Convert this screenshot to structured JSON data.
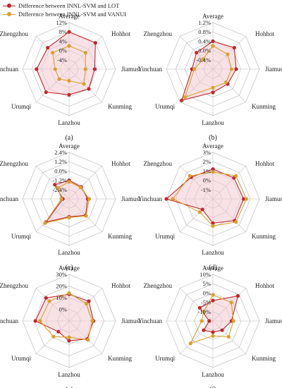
{
  "legend": {
    "series1": "Difference between INNL-SVM and LOT",
    "series2": "Difference between INNL-SVM and VANUI"
  },
  "colors": {
    "series1": "#c0272d",
    "series2": "#d8a12c",
    "fill": "#f4c6cd",
    "grid": "#bfbfbf"
  },
  "chart_data": [
    {
      "type": "radar",
      "panel_label": "(a)",
      "axes": [
        "Average",
        "Hohhot",
        "Jiamusi",
        "Kunming",
        "Lanzhou",
        "Urumqi",
        "Yinchuan",
        "Zhengzhou"
      ],
      "ticks": [
        "-4%",
        "0%",
        "4%",
        "8%",
        "12%"
      ],
      "range": [
        -8,
        12
      ],
      "series": [
        {
          "name": "Difference between INNL-SVM and LOT",
          "values": [
            8,
            8,
            3,
            4,
            3,
            6,
            6,
            5
          ]
        },
        {
          "name": "Difference between INNL-SVM and VANUI",
          "values": [
            2,
            2,
            -1,
            1,
            -3,
            -2,
            -2,
            2
          ]
        }
      ]
    },
    {
      "type": "radar",
      "panel_label": "(b)",
      "axes": [
        "Average",
        "Hohhot",
        "Jiamusi",
        "Kunming",
        "Lanzhou",
        "Urumqi",
        "Yinchuan",
        "Zhengzhou"
      ],
      "ticks": [
        "-0.4%",
        "0.0%",
        "0.4%",
        "0.8%",
        "1.2%"
      ],
      "range": [
        -0.8,
        1.2
      ],
      "series": [
        {
          "name": "Difference between INNL-SVM and LOT",
          "values": [
            0.4,
            0.5,
            0.2,
            0.1,
            0.2,
            1.1,
            0.1,
            0.2
          ]
        },
        {
          "name": "Difference between INNL-SVM and VANUI",
          "values": [
            0.2,
            0.1,
            0.0,
            0.0,
            0.0,
            0.9,
            0.0,
            -0.2
          ]
        }
      ]
    },
    {
      "type": "radar",
      "panel_label": "(c)",
      "axes": [
        "Average",
        "Hohhot",
        "Jiamusi",
        "Kunming",
        "Lanzhou",
        "Urumqi",
        "Yinchuan",
        "Zhengzhou"
      ],
      "ticks": [
        "-2.4%",
        "-1.2%",
        "0.0%",
        "1.2%",
        "2.4%"
      ],
      "range": [
        -3.6,
        2.4
      ],
      "series": [
        {
          "name": "Difference between INNL-SVM and LOT",
          "values": [
            -1.2,
            -1.4,
            -1.2,
            -0.6,
            -1.3,
            0.6,
            -2.8,
            -1.0
          ]
        },
        {
          "name": "Difference between INNL-SVM and VANUI",
          "values": [
            -1.4,
            -1.5,
            -1.0,
            -0.5,
            -1.2,
            0.8,
            -2.6,
            -1.6
          ]
        }
      ]
    },
    {
      "type": "radar",
      "panel_label": "(d)",
      "axes": [
        "Average",
        "Hohhot",
        "Jiamusi",
        "Kunming",
        "Lanzhou",
        "Urumqi",
        "Yinchuan",
        "Zhengzhou"
      ],
      "ticks": [
        "-1%",
        "0%",
        "1%",
        "2%",
        "3%"
      ],
      "range": [
        -2,
        3
      ],
      "series": [
        {
          "name": "Difference between INNL-SVM and LOT",
          "values": [
            1.2,
            1.2,
            1.3,
            1.3,
            0.6,
            -0.4,
            3.0,
            1.3
          ]
        },
        {
          "name": "Difference between INNL-SVM and VANUI",
          "values": [
            0.9,
            1.5,
            1.6,
            1.5,
            0.9,
            0.0,
            2.3,
            1.5
          ]
        }
      ]
    },
    {
      "type": "radar",
      "panel_label": "(e)",
      "axes": [
        "Average",
        "Hohhot",
        "Jiamusi",
        "Kunming",
        "Lanzhou",
        "Urumqi",
        "Yinchuan",
        "Zhengzhou"
      ],
      "ticks": [
        "0%",
        "10%",
        "20%",
        "30%"
      ],
      "range": [
        -10,
        30
      ],
      "series": [
        {
          "name": "Difference between INNL-SVM and LOT",
          "values": [
            13,
            14,
            11,
            12,
            7,
            3,
            19,
            18
          ]
        },
        {
          "name": "Difference between INNL-SVM and VANUI",
          "values": [
            14,
            11,
            10,
            13,
            4,
            9,
            15,
            14
          ]
        }
      ]
    },
    {
      "type": "radar",
      "panel_label": "(f)",
      "axes": [
        "Average",
        "Hohhot",
        "Jiamusi",
        "Kunming",
        "Lanzhou",
        "Urumqi",
        "Yinchuan",
        "Zhengzhou"
      ],
      "ticks": [
        "-10%",
        "-5%",
        "0%",
        "5%",
        "10%"
      ],
      "range": [
        -15,
        10
      ],
      "series": [
        {
          "name": "Difference between INNL-SVM and LOT",
          "values": [
            -4,
            4,
            -5,
            -8,
            -9,
            -8,
            -13,
            -5
          ]
        },
        {
          "name": "Difference between INNL-SVM and VANUI",
          "values": [
            -1,
            -1,
            -4,
            -3,
            -7,
            2,
            -9,
            -8
          ]
        }
      ]
    }
  ]
}
